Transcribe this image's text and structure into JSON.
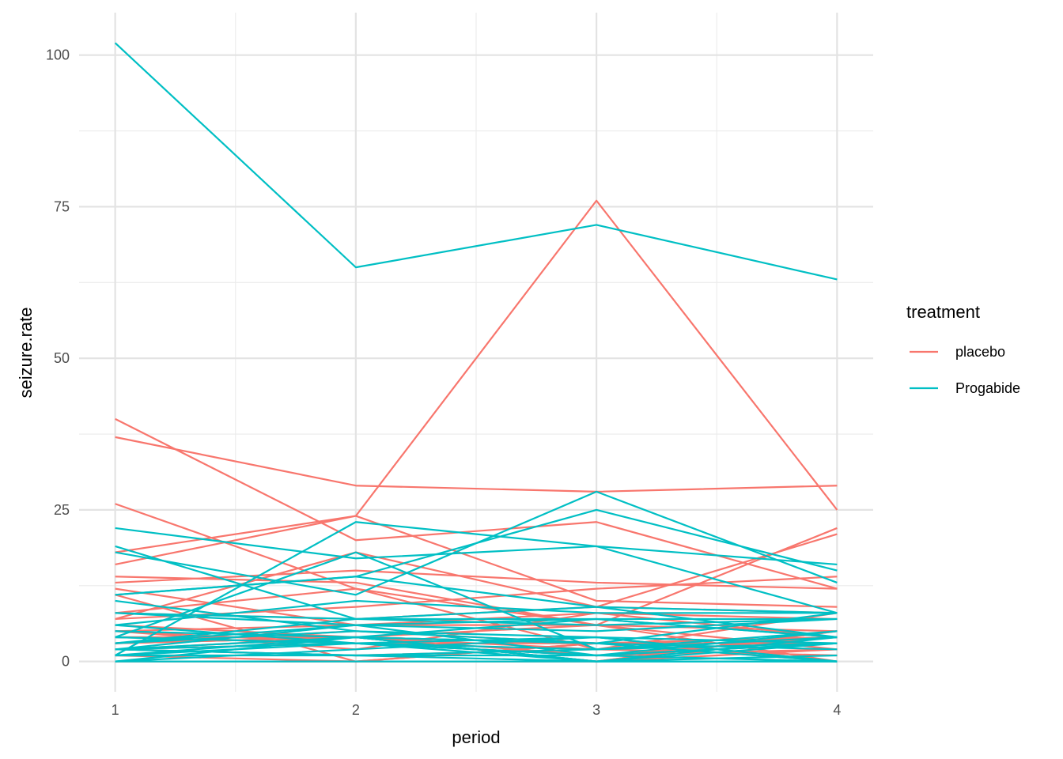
{
  "chart_data": {
    "type": "line",
    "title": "",
    "xlabel": "period",
    "ylabel": "seizure.rate",
    "x": [
      1,
      2,
      3,
      4
    ],
    "xticks": [
      "1",
      "2",
      "3",
      "4"
    ],
    "yticks": [
      "0",
      "25",
      "50",
      "75",
      "100"
    ],
    "xlim": [
      0.85,
      4.15
    ],
    "ylim": [
      -5,
      107
    ],
    "grid": true,
    "legend": {
      "title": "treatment",
      "position": "right",
      "entries": [
        {
          "label": "placebo",
          "color": "#F8766D"
        },
        {
          "label": "Progabide",
          "color": "#00BFC4"
        }
      ]
    },
    "series": [
      {
        "group": "placebo",
        "values": [
          5,
          3,
          3,
          3
        ]
      },
      {
        "group": "placebo",
        "values": [
          3,
          5,
          3,
          3
        ]
      },
      {
        "group": "placebo",
        "values": [
          2,
          4,
          0,
          5
        ]
      },
      {
        "group": "placebo",
        "values": [
          4,
          4,
          1,
          4
        ]
      },
      {
        "group": "placebo",
        "values": [
          7,
          18,
          9,
          21
        ]
      },
      {
        "group": "placebo",
        "values": [
          5,
          2,
          8,
          7
        ]
      },
      {
        "group": "placebo",
        "values": [
          6,
          4,
          0,
          2
        ]
      },
      {
        "group": "placebo",
        "values": [
          40,
          20,
          23,
          12
        ]
      },
      {
        "group": "placebo",
        "values": [
          5,
          6,
          6,
          5
        ]
      },
      {
        "group": "placebo",
        "values": [
          14,
          13,
          6,
          0
        ]
      },
      {
        "group": "placebo",
        "values": [
          26,
          12,
          6,
          22
        ]
      },
      {
        "group": "placebo",
        "values": [
          12,
          6,
          8,
          4
        ]
      },
      {
        "group": "placebo",
        "values": [
          4,
          4,
          6,
          2
        ]
      },
      {
        "group": "placebo",
        "values": [
          7,
          9,
          12,
          14
        ]
      },
      {
        "group": "placebo",
        "values": [
          16,
          24,
          10,
          9
        ]
      },
      {
        "group": "placebo",
        "values": [
          11,
          0,
          0,
          5
        ]
      },
      {
        "group": "placebo",
        "values": [
          0,
          0,
          3,
          3
        ]
      },
      {
        "group": "placebo",
        "values": [
          37,
          29,
          28,
          29
        ]
      },
      {
        "group": "placebo",
        "values": [
          3,
          4,
          2,
          4
        ]
      },
      {
        "group": "placebo",
        "values": [
          3,
          4,
          3,
          4
        ]
      },
      {
        "group": "placebo",
        "values": [
          3,
          4,
          3,
          4
        ]
      },
      {
        "group": "placebo",
        "values": [
          13,
          15,
          13,
          12
        ]
      },
      {
        "group": "placebo",
        "values": [
          8,
          7,
          9,
          8
        ]
      },
      {
        "group": "placebo",
        "values": [
          18,
          24,
          76,
          25
        ]
      },
      {
        "group": "placebo",
        "values": [
          2,
          1,
          2,
          1
        ]
      },
      {
        "group": "placebo",
        "values": [
          1,
          0,
          3,
          0
        ]
      },
      {
        "group": "placebo",
        "values": [
          2,
          3,
          1,
          2
        ]
      },
      {
        "group": "placebo",
        "values": [
          8,
          12,
          2,
          8
        ]
      },
      {
        "group": "Progabide",
        "values": [
          11,
          14,
          9,
          8
        ]
      },
      {
        "group": "Progabide",
        "values": [
          8,
          7,
          9,
          4
        ]
      },
      {
        "group": "Progabide",
        "values": [
          0,
          4,
          3,
          0
        ]
      },
      {
        "group": "Progabide",
        "values": [
          3,
          6,
          1,
          3
        ]
      },
      {
        "group": "Progabide",
        "values": [
          2,
          6,
          7,
          4
        ]
      },
      {
        "group": "Progabide",
        "values": [
          4,
          3,
          1,
          3
        ]
      },
      {
        "group": "Progabide",
        "values": [
          22,
          17,
          19,
          16
        ]
      },
      {
        "group": "Progabide",
        "values": [
          5,
          4,
          7,
          4
        ]
      },
      {
        "group": "Progabide",
        "values": [
          2,
          4,
          0,
          4
        ]
      },
      {
        "group": "Progabide",
        "values": [
          3,
          7,
          7,
          7
        ]
      },
      {
        "group": "Progabide",
        "values": [
          4,
          18,
          2,
          5
        ]
      },
      {
        "group": "Progabide",
        "values": [
          2,
          1,
          1,
          0
        ]
      },
      {
        "group": "Progabide",
        "values": [
          0,
          2,
          4,
          0
        ]
      },
      {
        "group": "Progabide",
        "values": [
          5,
          4,
          0,
          3
        ]
      },
      {
        "group": "Progabide",
        "values": [
          11,
          14,
          25,
          15
        ]
      },
      {
        "group": "Progabide",
        "values": [
          10,
          5,
          3,
          8
        ]
      },
      {
        "group": "Progabide",
        "values": [
          19,
          7,
          6,
          7
        ]
      },
      {
        "group": "Progabide",
        "values": [
          1,
          1,
          2,
          3
        ]
      },
      {
        "group": "Progabide",
        "values": [
          6,
          10,
          8,
          8
        ]
      },
      {
        "group": "Progabide",
        "values": [
          2,
          1,
          0,
          0
        ]
      },
      {
        "group": "Progabide",
        "values": [
          102,
          65,
          72,
          63
        ]
      },
      {
        "group": "Progabide",
        "values": [
          4,
          3,
          2,
          4
        ]
      },
      {
        "group": "Progabide",
        "values": [
          8,
          6,
          5,
          7
        ]
      },
      {
        "group": "Progabide",
        "values": [
          1,
          3,
          1,
          5
        ]
      },
      {
        "group": "Progabide",
        "values": [
          18,
          11,
          28,
          13
        ]
      },
      {
        "group": "Progabide",
        "values": [
          6,
          3,
          4,
          0
        ]
      },
      {
        "group": "Progabide",
        "values": [
          3,
          5,
          4,
          3
        ]
      },
      {
        "group": "Progabide",
        "values": [
          1,
          23,
          19,
          8
        ]
      },
      {
        "group": "Progabide",
        "values": [
          2,
          3,
          0,
          1
        ]
      },
      {
        "group": "Progabide",
        "values": [
          0,
          0,
          0,
          0
        ]
      },
      {
        "group": "Progabide",
        "values": [
          1,
          4,
          3,
          2
        ]
      }
    ]
  }
}
